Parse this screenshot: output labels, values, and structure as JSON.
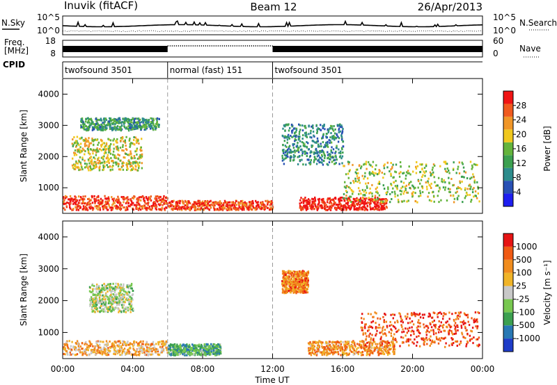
{
  "header": {
    "title": "Inuvik (fitACF)",
    "beam": "Beam 12",
    "date": "26/Apr/2013"
  },
  "strip_panels": {
    "nsky_label": "N.Sky",
    "nsearch_label": "N.Search",
    "freq_label_line1": "Freq.",
    "freq_label_line2": "[MHz]",
    "nave_label": "Nave",
    "cpid_label": "CPID",
    "noise_ticks": [
      "10^5",
      "10^0"
    ],
    "freq_ticks": [
      "18",
      "8"
    ],
    "nave_ticks": [
      "60",
      "0"
    ]
  },
  "cpid_segments": [
    {
      "label": "twofsound 3501",
      "start_hour": 0,
      "end_hour": 6
    },
    {
      "label": "normal (fast) 151",
      "start_hour": 6,
      "end_hour": 12
    },
    {
      "label": "twofsound 3501",
      "start_hour": 12,
      "end_hour": 24
    }
  ],
  "x_axis": {
    "label": "Time UT",
    "ticks": [
      "00:00",
      "04:00",
      "08:00",
      "12:00",
      "16:00",
      "20:00",
      "00:00"
    ],
    "range_hours": [
      0,
      24
    ]
  },
  "chart_data": [
    {
      "type": "heatmap",
      "name": "power",
      "ylabel": "Slant Range [km]",
      "ylim": [
        180,
        4500
      ],
      "yticks": [
        "1000",
        "2000",
        "3000",
        "4000"
      ],
      "colorbar_label": "Power [dB]",
      "colorbar_ticks": [
        "28",
        "24",
        "20",
        "16",
        "12",
        "8",
        "4"
      ],
      "colors": [
        "#1e1ef0",
        "#2850b4",
        "#2d8c8c",
        "#3ca050",
        "#64b43c",
        "#f0c81e",
        "#f09628",
        "#f05a1e",
        "#f01414"
      ],
      "regions": [
        {
          "t": [
            0.0,
            6.0
          ],
          "r": [
            250,
            700
          ],
          "level": 0.9
        },
        {
          "t": [
            6.0,
            12.0
          ],
          "r": [
            250,
            550
          ],
          "level": 0.85
        },
        {
          "t": [
            13.5,
            18.5
          ],
          "r": [
            250,
            650
          ],
          "level": 0.95
        },
        {
          "t": [
            0.5,
            4.5
          ],
          "r": [
            1500,
            2600
          ],
          "level": 0.6
        },
        {
          "t": [
            1.0,
            5.5
          ],
          "r": [
            2800,
            3200
          ],
          "level": 0.35
        },
        {
          "t": [
            12.5,
            16.0
          ],
          "r": [
            1700,
            3000
          ],
          "level": 0.3
        },
        {
          "t": [
            16.0,
            23.8
          ],
          "r": [
            500,
            1800
          ],
          "level": 0.55
        }
      ]
    },
    {
      "type": "heatmap",
      "name": "velocity",
      "ylabel": "Slant Range [km]",
      "ylim": [
        180,
        4500
      ],
      "yticks": [
        "1000",
        "2000",
        "3000",
        "4000"
      ],
      "colorbar_label": "Velocity [m s⁻¹]",
      "colorbar_ticks": [
        "1000",
        "500",
        "100",
        "25",
        "-25",
        "-100",
        "-500",
        "-1000"
      ],
      "colors": [
        "#1e3cc8",
        "#2878b4",
        "#3ca050",
        "#78c850",
        "#c8c8c8",
        "#f0b428",
        "#f08c1e",
        "#f05a14",
        "#e61414"
      ],
      "regions": [
        {
          "t": [
            0.0,
            6.0
          ],
          "r": [
            250,
            700
          ],
          "level": 0.65
        },
        {
          "t": [
            6.0,
            9.0
          ],
          "r": [
            250,
            600
          ],
          "level": 0.3
        },
        {
          "t": [
            1.5,
            4.0
          ],
          "r": [
            1600,
            2500
          ],
          "level": 0.45
        },
        {
          "t": [
            12.5,
            14.0
          ],
          "r": [
            2200,
            2900
          ],
          "level": 0.75
        },
        {
          "t": [
            14.0,
            19.0
          ],
          "r": [
            250,
            700
          ],
          "level": 0.7
        },
        {
          "t": [
            17.0,
            23.8
          ],
          "r": [
            500,
            1600
          ],
          "level": 0.85
        }
      ]
    }
  ]
}
